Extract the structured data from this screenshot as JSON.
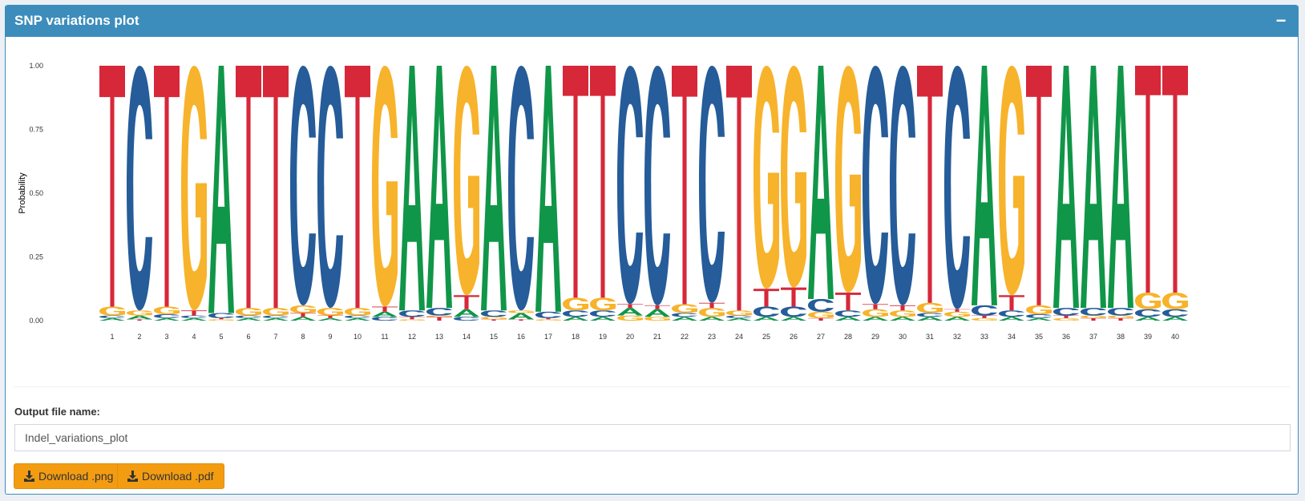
{
  "panel": {
    "title": "SNP variations plot",
    "collapse_label": "−"
  },
  "chart_data": {
    "type": "sequence-logo",
    "ylabel": "Probability",
    "y_ticks": [
      "0.00",
      "0.25",
      "0.50",
      "0.75",
      "1.00"
    ],
    "ylim": [
      0,
      1
    ],
    "x_ticks": [
      "1",
      "2",
      "3",
      "4",
      "5",
      "6",
      "7",
      "8",
      "9",
      "10",
      "11",
      "12",
      "13",
      "14",
      "15",
      "16",
      "17",
      "18",
      "19",
      "20",
      "21",
      "22",
      "23",
      "24",
      "25",
      "26",
      "27",
      "28",
      "29",
      "30",
      "31",
      "32",
      "33",
      "34",
      "35",
      "36",
      "37",
      "38",
      "39",
      "40"
    ],
    "colors": {
      "A": "#109648",
      "C": "#255c99",
      "G": "#f7b32b",
      "T": "#d62839"
    },
    "positions": [
      [
        [
          "A",
          0.01
        ],
        [
          "C",
          0.01
        ],
        [
          "G",
          0.035
        ],
        [
          "T",
          0.945
        ]
      ],
      [
        [
          "T",
          0.005
        ],
        [
          "A",
          0.015
        ],
        [
          "G",
          0.02
        ],
        [
          "C",
          0.96
        ]
      ],
      [
        [
          "A",
          0.01
        ],
        [
          "C",
          0.015
        ],
        [
          "G",
          0.03
        ],
        [
          "T",
          0.945
        ]
      ],
      [
        [
          "A",
          0.01
        ],
        [
          "C",
          0.01
        ],
        [
          "T",
          0.02
        ],
        [
          "G",
          0.96
        ]
      ],
      [
        [
          "G",
          0.005
        ],
        [
          "T",
          0.005
        ],
        [
          "C",
          0.02
        ],
        [
          "A",
          0.97
        ]
      ],
      [
        [
          "A",
          0.01
        ],
        [
          "C",
          0.01
        ],
        [
          "G",
          0.03
        ],
        [
          "T",
          0.95
        ]
      ],
      [
        [
          "A",
          0.01
        ],
        [
          "C",
          0.01
        ],
        [
          "G",
          0.03
        ],
        [
          "T",
          0.95
        ]
      ],
      [
        [
          "A",
          0.015
        ],
        [
          "T",
          0.015
        ],
        [
          "G",
          0.03
        ],
        [
          "C",
          0.94
        ]
      ],
      [
        [
          "A",
          0.01
        ],
        [
          "T",
          0.01
        ],
        [
          "G",
          0.03
        ],
        [
          "C",
          0.95
        ]
      ],
      [
        [
          "A",
          0.01
        ],
        [
          "C",
          0.01
        ],
        [
          "G",
          0.03
        ],
        [
          "T",
          0.95
        ]
      ],
      [
        [
          "C",
          0.015
        ],
        [
          "A",
          0.02
        ],
        [
          "T",
          0.02
        ],
        [
          "G",
          0.945
        ]
      ],
      [
        [
          "G",
          0.005
        ],
        [
          "T",
          0.01
        ],
        [
          "C",
          0.025
        ],
        [
          "A",
          0.96
        ]
      ],
      [
        [
          "T",
          0.015
        ],
        [
          "G",
          0.005
        ],
        [
          "C",
          0.03
        ],
        [
          "A",
          0.95
        ]
      ],
      [
        [
          "C",
          0.015
        ],
        [
          "A",
          0.03
        ],
        [
          "T",
          0.055
        ],
        [
          "G",
          0.9
        ]
      ],
      [
        [
          "T",
          0.005
        ],
        [
          "G",
          0.01
        ],
        [
          "C",
          0.025
        ],
        [
          "A",
          0.96
        ]
      ],
      [
        [
          "T",
          0.005
        ],
        [
          "A",
          0.025
        ],
        [
          "G",
          0.01
        ],
        [
          "C",
          0.96
        ]
      ],
      [
        [
          "G",
          0.005
        ],
        [
          "T",
          0.005
        ],
        [
          "C",
          0.025
        ],
        [
          "A",
          0.965
        ]
      ],
      [
        [
          "A",
          0.015
        ],
        [
          "C",
          0.025
        ],
        [
          "G",
          0.05
        ],
        [
          "T",
          0.91
        ]
      ],
      [
        [
          "A",
          0.015
        ],
        [
          "C",
          0.025
        ],
        [
          "G",
          0.05
        ],
        [
          "T",
          0.91
        ]
      ],
      [
        [
          "G",
          0.02
        ],
        [
          "A",
          0.03
        ],
        [
          "T",
          0.015
        ],
        [
          "C",
          0.935
        ]
      ],
      [
        [
          "G",
          0.015
        ],
        [
          "A",
          0.03
        ],
        [
          "T",
          0.015
        ],
        [
          "C",
          0.94
        ]
      ],
      [
        [
          "A",
          0.015
        ],
        [
          "C",
          0.015
        ],
        [
          "G",
          0.035
        ],
        [
          "T",
          0.935
        ]
      ],
      [
        [
          "A",
          0.015
        ],
        [
          "G",
          0.035
        ],
        [
          "T",
          0.02
        ],
        [
          "C",
          0.93
        ]
      ],
      [
        [
          "A",
          0.01
        ],
        [
          "C",
          0.01
        ],
        [
          "G",
          0.02
        ],
        [
          "T",
          0.96
        ]
      ],
      [
        [
          "A",
          0.015
        ],
        [
          "C",
          0.04
        ],
        [
          "T",
          0.07
        ],
        [
          "G",
          0.875
        ]
      ],
      [
        [
          "A",
          0.015
        ],
        [
          "C",
          0.04
        ],
        [
          "T",
          0.075
        ],
        [
          "G",
          0.87
        ]
      ],
      [
        [
          "T",
          0.01
        ],
        [
          "G",
          0.025
        ],
        [
          "C",
          0.05
        ],
        [
          "A",
          0.915
        ]
      ],
      [
        [
          "A",
          0.015
        ],
        [
          "C",
          0.025
        ],
        [
          "T",
          0.07
        ],
        [
          "G",
          0.89
        ]
      ],
      [
        [
          "A",
          0.015
        ],
        [
          "G",
          0.03
        ],
        [
          "T",
          0.02
        ],
        [
          "C",
          0.935
        ]
      ],
      [
        [
          "A",
          0.015
        ],
        [
          "G",
          0.025
        ],
        [
          "T",
          0.02
        ],
        [
          "C",
          0.94
        ]
      ],
      [
        [
          "A",
          0.015
        ],
        [
          "C",
          0.015
        ],
        [
          "G",
          0.04
        ],
        [
          "T",
          0.93
        ]
      ],
      [
        [
          "A",
          0.015
        ],
        [
          "G",
          0.02
        ],
        [
          "T",
          0.01
        ],
        [
          "C",
          0.955
        ]
      ],
      [
        [
          "G",
          0.01
        ],
        [
          "T",
          0.01
        ],
        [
          "C",
          0.04
        ],
        [
          "A",
          0.94
        ]
      ],
      [
        [
          "A",
          0.015
        ],
        [
          "C",
          0.025
        ],
        [
          "T",
          0.06
        ],
        [
          "G",
          0.9
        ]
      ],
      [
        [
          "A",
          0.01
        ],
        [
          "C",
          0.015
        ],
        [
          "G",
          0.035
        ],
        [
          "T",
          0.94
        ]
      ],
      [
        [
          "G",
          0.01
        ],
        [
          "T",
          0.01
        ],
        [
          "C",
          0.03
        ],
        [
          "A",
          0.95
        ]
      ],
      [
        [
          "T",
          0.01
        ],
        [
          "G",
          0.01
        ],
        [
          "C",
          0.03
        ],
        [
          "A",
          0.95
        ]
      ],
      [
        [
          "T",
          0.01
        ],
        [
          "G",
          0.01
        ],
        [
          "C",
          0.03
        ],
        [
          "A",
          0.95
        ]
      ],
      [
        [
          "A",
          0.015
        ],
        [
          "C",
          0.03
        ],
        [
          "G",
          0.065
        ],
        [
          "T",
          0.89
        ]
      ],
      [
        [
          "A",
          0.015
        ],
        [
          "C",
          0.03
        ],
        [
          "G",
          0.065
        ],
        [
          "T",
          0.89
        ]
      ]
    ]
  },
  "form": {
    "label": "Output file name:",
    "file_name": "Indel_variations_plot"
  },
  "buttons": {
    "png_label": "Download .png",
    "pdf_label": "Download .pdf",
    "icon": "download-icon"
  }
}
